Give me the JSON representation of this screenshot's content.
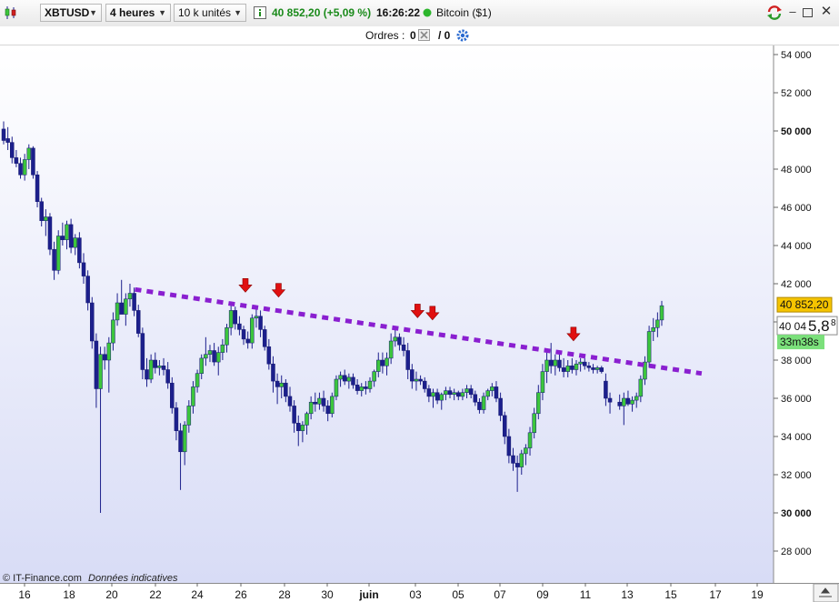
{
  "toolbar": {
    "symbol": "XBTUSD",
    "timeframe": "4 heures",
    "units": "10 k unités",
    "price": "40 852,20 (+5,09 %)",
    "time": "16:26:22",
    "instrument": "Bitcoin ($1)",
    "icons": [
      "candlestick-logo-icon",
      "info-icon",
      "status-dot-icon",
      "refresh-icon",
      "minimize-icon",
      "maximize-icon",
      "close-icon"
    ]
  },
  "orders": {
    "label": "Ordres :",
    "count_a": "0",
    "count_b": "/ 0"
  },
  "copyright": {
    "source": "© IT-Finance.com",
    "note": "Données indicatives"
  },
  "chart_data": {
    "type": "candlestick",
    "ylim": [
      26500,
      54500
    ],
    "y_ticks": [
      "54 000",
      "52 000",
      "50 000",
      "48 000",
      "46 000",
      "44 000",
      "42 000",
      "40 000",
      "38 000",
      "36 000",
      "34 000",
      "32 000",
      "30 000",
      "28 000"
    ],
    "y_tick_values": [
      54000,
      52000,
      50000,
      48000,
      46000,
      44000,
      42000,
      40000,
      38000,
      36000,
      34000,
      32000,
      30000,
      28000
    ],
    "x_ticks": [
      "16",
      "18",
      "20",
      "22",
      "24",
      "26",
      "28",
      "30",
      "juin",
      "03",
      "05",
      "07",
      "09",
      "11",
      "13",
      "15",
      "17",
      "19"
    ],
    "last_price_label": "40 852,20",
    "cursor_price_label": "40 04",
    "cursor_big": "5,8",
    "cursor_sup": "8",
    "countdown_label": "33m38s",
    "colors": {
      "up": "#3cc63c",
      "down": "#1c1f8c",
      "trendline": "#8a1fd0",
      "arrows": "#e01010",
      "last_price_bg": "#f5c400",
      "countdown_bg": "#7be07b"
    },
    "trendline": {
      "start": {
        "x": 21.0,
        "y": 41700
      },
      "end": {
        "x": 16.4,
        "y": 37300
      }
    },
    "arrow_markers": [
      26.0,
      27.5,
      3.1,
      3.8,
      10.4
    ],
    "series": [
      {
        "o": 50100,
        "h": 50500,
        "l": 49300,
        "c": 49500
      },
      {
        "o": 49600,
        "h": 50200,
        "l": 49000,
        "c": 49400
      },
      {
        "o": 49400,
        "h": 49700,
        "l": 48300,
        "c": 48600
      },
      {
        "o": 48600,
        "h": 49000,
        "l": 48100,
        "c": 48300
      },
      {
        "o": 48300,
        "h": 48600,
        "l": 47500,
        "c": 47700
      },
      {
        "o": 47700,
        "h": 48800,
        "l": 47400,
        "c": 48500
      },
      {
        "o": 48500,
        "h": 49300,
        "l": 48000,
        "c": 49100
      },
      {
        "o": 49100,
        "h": 49200,
        "l": 47500,
        "c": 47700
      },
      {
        "o": 47700,
        "h": 47900,
        "l": 46000,
        "c": 46300
      },
      {
        "o": 46300,
        "h": 46500,
        "l": 45000,
        "c": 45300
      },
      {
        "o": 45300,
        "h": 45900,
        "l": 44500,
        "c": 45500
      },
      {
        "o": 45500,
        "h": 45700,
        "l": 43500,
        "c": 43800
      },
      {
        "o": 43800,
        "h": 44200,
        "l": 42200,
        "c": 42700
      },
      {
        "o": 42700,
        "h": 44800,
        "l": 42500,
        "c": 44500
      },
      {
        "o": 44500,
        "h": 45200,
        "l": 44000,
        "c": 44300
      },
      {
        "o": 44300,
        "h": 45300,
        "l": 43800,
        "c": 45100
      },
      {
        "o": 45100,
        "h": 45400,
        "l": 43600,
        "c": 43900
      },
      {
        "o": 43900,
        "h": 44600,
        "l": 43500,
        "c": 44400
      },
      {
        "o": 44400,
        "h": 44700,
        "l": 42800,
        "c": 43100
      },
      {
        "o": 43100,
        "h": 43600,
        "l": 42000,
        "c": 42400
      },
      {
        "o": 42400,
        "h": 42700,
        "l": 40600,
        "c": 41000
      },
      {
        "o": 41000,
        "h": 41300,
        "l": 38600,
        "c": 39000
      },
      {
        "o": 39000,
        "h": 39400,
        "l": 35500,
        "c": 36500
      },
      {
        "o": 36500,
        "h": 38700,
        "l": 30000,
        "c": 38300
      },
      {
        "o": 38300,
        "h": 38700,
        "l": 37500,
        "c": 38000
      },
      {
        "o": 38000,
        "h": 39200,
        "l": 36300,
        "c": 38900
      },
      {
        "o": 38900,
        "h": 40500,
        "l": 38500,
        "c": 40100
      },
      {
        "o": 40100,
        "h": 41500,
        "l": 39800,
        "c": 41000
      },
      {
        "o": 41000,
        "h": 42200,
        "l": 40500,
        "c": 40400
      },
      {
        "o": 40400,
        "h": 41500,
        "l": 39800,
        "c": 41200
      },
      {
        "o": 41200,
        "h": 42000,
        "l": 40800,
        "c": 41500
      },
      {
        "o": 41500,
        "h": 41800,
        "l": 40300,
        "c": 40600
      },
      {
        "o": 40600,
        "h": 40900,
        "l": 39200,
        "c": 39400
      },
      {
        "o": 39400,
        "h": 39700,
        "l": 37000,
        "c": 37500
      },
      {
        "o": 37500,
        "h": 38100,
        "l": 36600,
        "c": 37000
      },
      {
        "o": 37000,
        "h": 38300,
        "l": 36800,
        "c": 38000
      },
      {
        "o": 38000,
        "h": 38400,
        "l": 37300,
        "c": 37600
      },
      {
        "o": 37600,
        "h": 38000,
        "l": 37200,
        "c": 37700
      },
      {
        "o": 37700,
        "h": 38100,
        "l": 37200,
        "c": 37500
      },
      {
        "o": 37500,
        "h": 37900,
        "l": 36500,
        "c": 36800
      },
      {
        "o": 36800,
        "h": 37100,
        "l": 35200,
        "c": 35500
      },
      {
        "o": 35500,
        "h": 35800,
        "l": 33800,
        "c": 34300
      },
      {
        "o": 34300,
        "h": 34700,
        "l": 31200,
        "c": 33200
      },
      {
        "o": 33200,
        "h": 34800,
        "l": 32500,
        "c": 34600
      },
      {
        "o": 34600,
        "h": 35900,
        "l": 34200,
        "c": 35600
      },
      {
        "o": 35600,
        "h": 36900,
        "l": 35200,
        "c": 36600
      },
      {
        "o": 36600,
        "h": 37500,
        "l": 36300,
        "c": 37300
      },
      {
        "o": 37300,
        "h": 38300,
        "l": 37000,
        "c": 38100
      },
      {
        "o": 38100,
        "h": 39200,
        "l": 37700,
        "c": 38300
      },
      {
        "o": 38300,
        "h": 38800,
        "l": 37900,
        "c": 38500
      },
      {
        "o": 38500,
        "h": 38900,
        "l": 37700,
        "c": 37900
      },
      {
        "o": 37900,
        "h": 38700,
        "l": 37200,
        "c": 38400
      },
      {
        "o": 38400,
        "h": 39100,
        "l": 38000,
        "c": 38800
      },
      {
        "o": 38800,
        "h": 39900,
        "l": 38400,
        "c": 39700
      },
      {
        "o": 39700,
        "h": 40900,
        "l": 39300,
        "c": 40600
      },
      {
        "o": 40600,
        "h": 40800,
        "l": 39600,
        "c": 39900
      },
      {
        "o": 39900,
        "h": 40300,
        "l": 39300,
        "c": 39600
      },
      {
        "o": 39600,
        "h": 39800,
        "l": 38800,
        "c": 39100
      },
      {
        "o": 39100,
        "h": 39500,
        "l": 38600,
        "c": 38900
      },
      {
        "o": 38900,
        "h": 40400,
        "l": 38600,
        "c": 40200
      },
      {
        "o": 40200,
        "h": 40800,
        "l": 39700,
        "c": 40300
      },
      {
        "o": 40300,
        "h": 40600,
        "l": 39200,
        "c": 39600
      },
      {
        "o": 39600,
        "h": 39800,
        "l": 38500,
        "c": 38700
      },
      {
        "o": 38700,
        "h": 39100,
        "l": 37500,
        "c": 37800
      },
      {
        "o": 37800,
        "h": 38200,
        "l": 36300,
        "c": 36900
      },
      {
        "o": 36900,
        "h": 37300,
        "l": 35700,
        "c": 36600
      },
      {
        "o": 36600,
        "h": 37200,
        "l": 36000,
        "c": 36800
      },
      {
        "o": 36800,
        "h": 37000,
        "l": 35800,
        "c": 36100
      },
      {
        "o": 36100,
        "h": 36600,
        "l": 35300,
        "c": 35600
      },
      {
        "o": 35600,
        "h": 35900,
        "l": 34200,
        "c": 34700
      },
      {
        "o": 34700,
        "h": 35100,
        "l": 33500,
        "c": 34300
      },
      {
        "o": 34300,
        "h": 34800,
        "l": 33700,
        "c": 34600
      },
      {
        "o": 34600,
        "h": 35300,
        "l": 34100,
        "c": 35200
      },
      {
        "o": 35200,
        "h": 36100,
        "l": 34900,
        "c": 35800
      },
      {
        "o": 35800,
        "h": 36300,
        "l": 35300,
        "c": 35700
      },
      {
        "o": 35700,
        "h": 36300,
        "l": 35400,
        "c": 36000
      },
      {
        "o": 36000,
        "h": 36400,
        "l": 35300,
        "c": 35600
      },
      {
        "o": 35600,
        "h": 35900,
        "l": 34800,
        "c": 35200
      },
      {
        "o": 35200,
        "h": 36300,
        "l": 35000,
        "c": 36100
      },
      {
        "o": 36100,
        "h": 37200,
        "l": 35900,
        "c": 37000
      },
      {
        "o": 37000,
        "h": 37400,
        "l": 36600,
        "c": 37200
      },
      {
        "o": 37200,
        "h": 37500,
        "l": 36700,
        "c": 36900
      },
      {
        "o": 36900,
        "h": 37300,
        "l": 36500,
        "c": 37100
      },
      {
        "o": 37100,
        "h": 37300,
        "l": 36500,
        "c": 36700
      },
      {
        "o": 36700,
        "h": 37000,
        "l": 36200,
        "c": 36400
      },
      {
        "o": 36400,
        "h": 36800,
        "l": 36100,
        "c": 36600
      },
      {
        "o": 36600,
        "h": 36900,
        "l": 36200,
        "c": 36500
      },
      {
        "o": 36500,
        "h": 37100,
        "l": 36300,
        "c": 36900
      },
      {
        "o": 36900,
        "h": 37500,
        "l": 36600,
        "c": 37400
      },
      {
        "o": 37400,
        "h": 38400,
        "l": 37100,
        "c": 38000
      },
      {
        "o": 38000,
        "h": 38400,
        "l": 37300,
        "c": 37700
      },
      {
        "o": 37700,
        "h": 38400,
        "l": 37200,
        "c": 38100
      },
      {
        "o": 38100,
        "h": 39400,
        "l": 37800,
        "c": 39000
      },
      {
        "o": 39000,
        "h": 39700,
        "l": 38700,
        "c": 39200
      },
      {
        "o": 39200,
        "h": 39400,
        "l": 38500,
        "c": 38800
      },
      {
        "o": 38800,
        "h": 39200,
        "l": 38200,
        "c": 38500
      },
      {
        "o": 38500,
        "h": 38900,
        "l": 37000,
        "c": 37500
      },
      {
        "o": 37500,
        "h": 37800,
        "l": 36500,
        "c": 36900
      },
      {
        "o": 36900,
        "h": 37400,
        "l": 36400,
        "c": 37000
      },
      {
        "o": 37000,
        "h": 37200,
        "l": 36700,
        "c": 36900
      },
      {
        "o": 36900,
        "h": 37100,
        "l": 36300,
        "c": 36500
      },
      {
        "o": 36500,
        "h": 36700,
        "l": 35800,
        "c": 36100
      },
      {
        "o": 36100,
        "h": 36500,
        "l": 35500,
        "c": 36300
      },
      {
        "o": 36300,
        "h": 36500,
        "l": 35700,
        "c": 35900
      },
      {
        "o": 35900,
        "h": 36300,
        "l": 35400,
        "c": 36200
      },
      {
        "o": 36200,
        "h": 36600,
        "l": 35900,
        "c": 36400
      },
      {
        "o": 36400,
        "h": 36600,
        "l": 36000,
        "c": 36200
      },
      {
        "o": 36200,
        "h": 36500,
        "l": 35900,
        "c": 36300
      },
      {
        "o": 36300,
        "h": 36400,
        "l": 35900,
        "c": 36100
      },
      {
        "o": 36100,
        "h": 36500,
        "l": 35900,
        "c": 36300
      },
      {
        "o": 36300,
        "h": 36700,
        "l": 36000,
        "c": 36500
      },
      {
        "o": 36500,
        "h": 36700,
        "l": 36000,
        "c": 36200
      },
      {
        "o": 36200,
        "h": 36400,
        "l": 35600,
        "c": 35800
      },
      {
        "o": 35800,
        "h": 36000,
        "l": 35200,
        "c": 35400
      },
      {
        "o": 35400,
        "h": 36300,
        "l": 35200,
        "c": 36100
      },
      {
        "o": 36100,
        "h": 36500,
        "l": 35900,
        "c": 36400
      },
      {
        "o": 36400,
        "h": 36800,
        "l": 36100,
        "c": 36600
      },
      {
        "o": 36600,
        "h": 36900,
        "l": 35800,
        "c": 36000
      },
      {
        "o": 36000,
        "h": 36300,
        "l": 34800,
        "c": 35100
      },
      {
        "o": 35100,
        "h": 35300,
        "l": 33600,
        "c": 34000
      },
      {
        "o": 34000,
        "h": 34400,
        "l": 32600,
        "c": 33000
      },
      {
        "o": 33000,
        "h": 33400,
        "l": 32200,
        "c": 32600
      },
      {
        "o": 32600,
        "h": 33000,
        "l": 31100,
        "c": 32400
      },
      {
        "o": 32400,
        "h": 33300,
        "l": 32000,
        "c": 33100
      },
      {
        "o": 33100,
        "h": 33600,
        "l": 32500,
        "c": 33400
      },
      {
        "o": 33400,
        "h": 34500,
        "l": 33000,
        "c": 34200
      },
      {
        "o": 34200,
        "h": 35500,
        "l": 33900,
        "c": 35200
      },
      {
        "o": 35200,
        "h": 36700,
        "l": 34900,
        "c": 36300
      },
      {
        "o": 36300,
        "h": 37800,
        "l": 35900,
        "c": 37400
      },
      {
        "o": 37400,
        "h": 38400,
        "l": 36800,
        "c": 38000
      },
      {
        "o": 38000,
        "h": 38900,
        "l": 37300,
        "c": 37700
      },
      {
        "o": 37700,
        "h": 38300,
        "l": 37200,
        "c": 38000
      },
      {
        "o": 38000,
        "h": 38500,
        "l": 37400,
        "c": 37600
      },
      {
        "o": 37600,
        "h": 38100,
        "l": 37100,
        "c": 37400
      },
      {
        "o": 37400,
        "h": 38000,
        "l": 37100,
        "c": 37700
      },
      {
        "o": 37700,
        "h": 38100,
        "l": 37300,
        "c": 37500
      },
      {
        "o": 37500,
        "h": 38000,
        "l": 37200,
        "c": 37800
      },
      {
        "o": 37800,
        "h": 38100,
        "l": 37400,
        "c": 37900
      },
      {
        "o": 37900,
        "h": 38100,
        "l": 37500,
        "c": 37700
      },
      {
        "o": 37700,
        "h": 37900,
        "l": 37400,
        "c": 37600
      },
      {
        "o": 37600,
        "h": 37800,
        "l": 37300,
        "c": 37500
      },
      {
        "o": 37500,
        "h": 37700,
        "l": 37300,
        "c": 37600
      },
      {
        "o": 37600,
        "h": 37700,
        "l": 37300,
        "c": 37400
      },
      {
        "o": 36900,
        "h": 37300,
        "l": 35600,
        "c": 36000
      },
      {
        "o": 36000,
        "h": 36300,
        "l": 35200,
        "c": 35800
      },
      {
        "o": 35800,
        "h": 36200,
        "l": 35400,
        "c": 35600
      },
      {
        "o": 35600,
        "h": 36300,
        "l": 34600,
        "c": 36000
      },
      {
        "o": 36000,
        "h": 36400,
        "l": 35600,
        "c": 35700
      },
      {
        "o": 35700,
        "h": 36100,
        "l": 35300,
        "c": 35900
      },
      {
        "o": 35900,
        "h": 36300,
        "l": 35500,
        "c": 36100
      },
      {
        "o": 36100,
        "h": 37200,
        "l": 35800,
        "c": 37000
      },
      {
        "o": 37000,
        "h": 38200,
        "l": 36700,
        "c": 37900
      },
      {
        "o": 37900,
        "h": 39800,
        "l": 37600,
        "c": 39500
      },
      {
        "o": 39500,
        "h": 40200,
        "l": 39000,
        "c": 39700
      },
      {
        "o": 39700,
        "h": 40500,
        "l": 39200,
        "c": 40100
      },
      {
        "o": 40100,
        "h": 41100,
        "l": 39800,
        "c": 40850
      }
    ]
  }
}
